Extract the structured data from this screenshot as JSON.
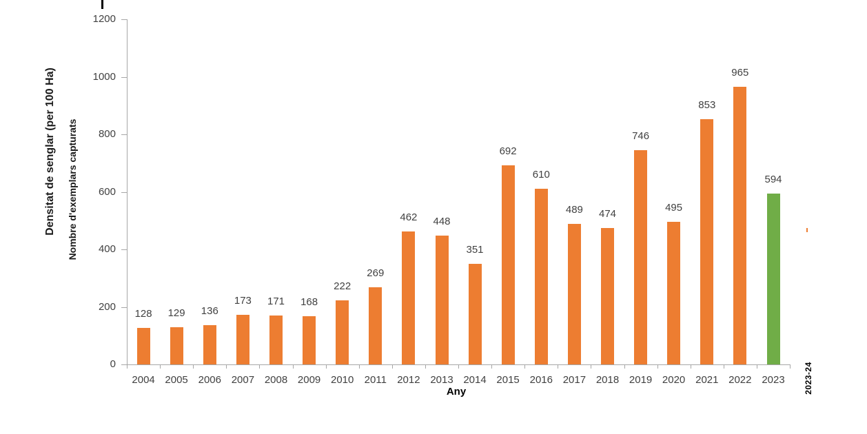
{
  "chart_data": {
    "type": "bar",
    "title": "",
    "categories": [
      "2004",
      "2005",
      "2006",
      "2007",
      "2008",
      "2009",
      "2010",
      "2011",
      "2012",
      "2013",
      "2014",
      "2015",
      "2016",
      "2017",
      "2018",
      "2019",
      "2020",
      "2021",
      "2022",
      "2023"
    ],
    "values": [
      128,
      129,
      136,
      173,
      171,
      168,
      222,
      269,
      462,
      448,
      351,
      692,
      610,
      489,
      474,
      746,
      495,
      853,
      965,
      594
    ],
    "data_labels": [
      "128",
      "129",
      "136",
      "173",
      "171",
      "168",
      "222",
      "269",
      "462",
      "448",
      "351",
      "692",
      "610",
      "489",
      "474",
      "746",
      "495",
      "853",
      "965",
      "594"
    ],
    "xlabel": "Any",
    "ylabel_outer": "Densitat de senglar (per 100 Ha)",
    "ylabel_inner": "Nombre d'exemplars capturats",
    "ylim": [
      0,
      1200
    ],
    "y_ticks": [
      0,
      200,
      400,
      600,
      800,
      1000,
      1200
    ],
    "y_tick_labels": [
      "0",
      "200",
      "400",
      "600",
      "800",
      "1000",
      "1200"
    ],
    "grid": false,
    "legend_position": "none",
    "side_annotation": "2023-24",
    "highlight_index": 19,
    "colors": {
      "bar_default": "#ED7D31",
      "bar_highlight": "#70AD47",
      "axis_line": "#A6A6A6",
      "tick_label": "#404040",
      "data_label": "#404040"
    }
  }
}
